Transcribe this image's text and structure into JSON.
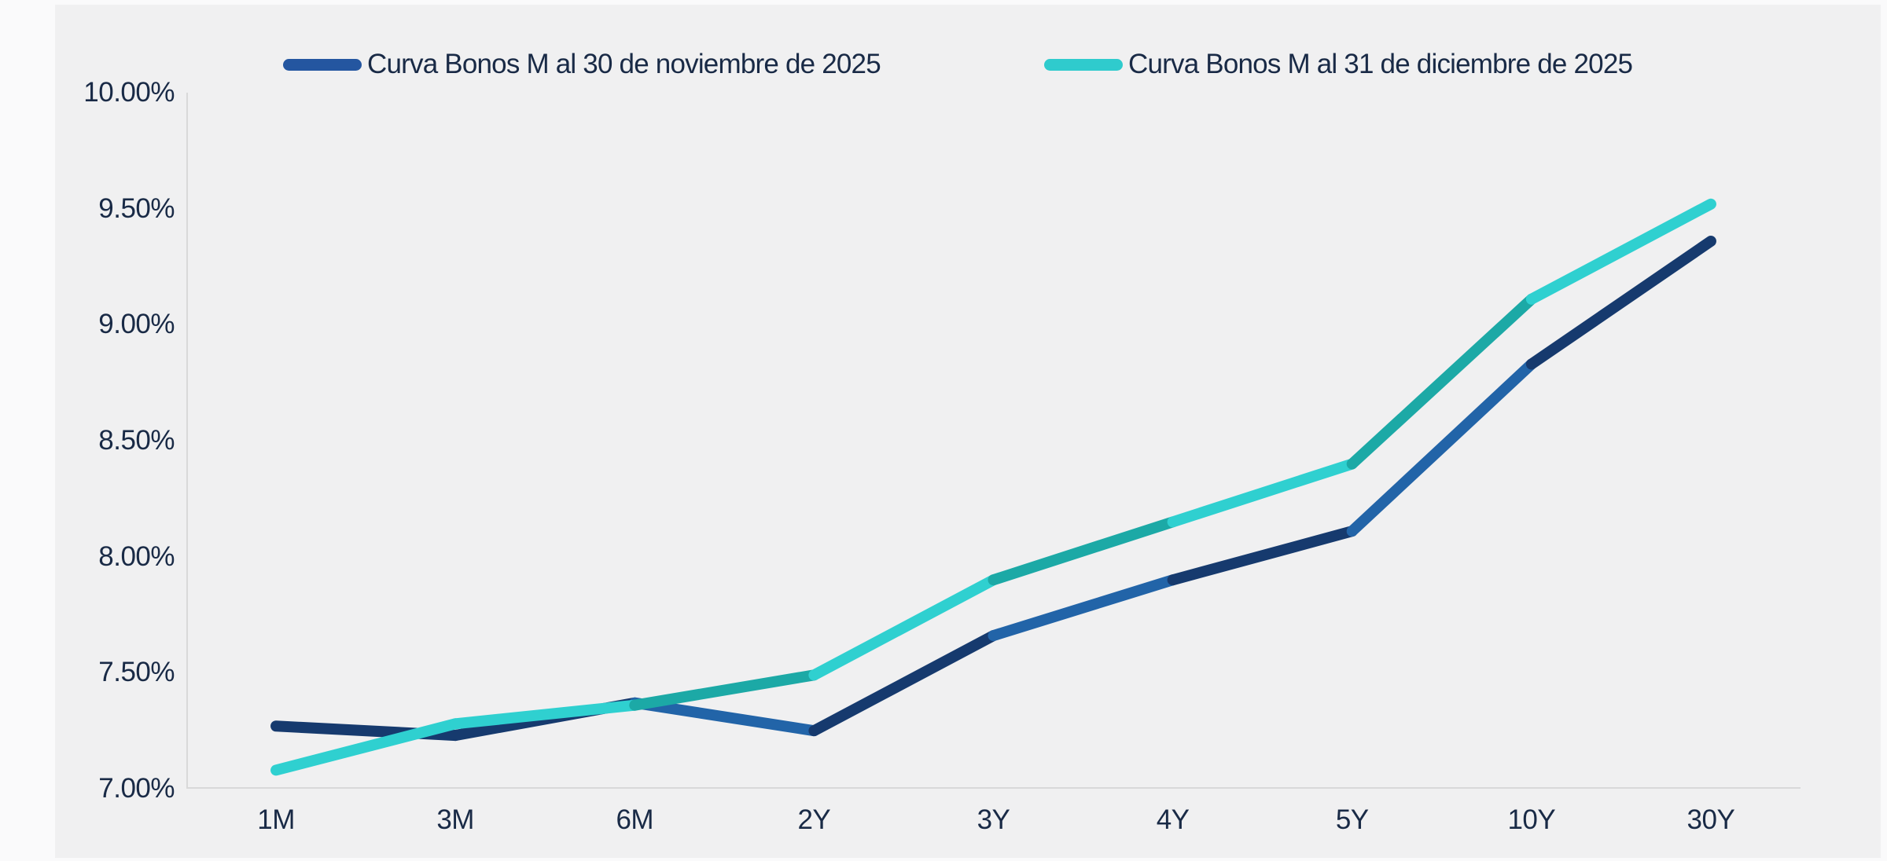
{
  "chart_data": {
    "type": "line",
    "x": [
      "1M",
      "3M",
      "6M",
      "2Y",
      "3Y",
      "4Y",
      "5Y",
      "10Y",
      "30Y"
    ],
    "series": [
      {
        "name": "Curva Bonos M al 30 de noviembre de 2025",
        "values": [
          7.27,
          7.23,
          7.37,
          7.25,
          7.66,
          7.9,
          8.11,
          8.83,
          9.36
        ],
        "color": "#163A6E",
        "color_alt": "#2264A8",
        "swatch": "#2456A0"
      },
      {
        "name": "Curva Bonos M al 31 de diciembre de 2025",
        "values": [
          7.08,
          7.28,
          7.36,
          7.49,
          7.9,
          8.15,
          8.4,
          9.11,
          9.52
        ],
        "color": "#2FD0D0",
        "color_alt": "#1CA9A6",
        "swatch": "#2FCBCD"
      }
    ],
    "alt_segments": [
      2,
      4,
      6
    ],
    "ylim": [
      7.0,
      10.0
    ],
    "ytick_labels": [
      "10.00%",
      "9.50%",
      "9.00%",
      "8.50%",
      "8.00%",
      "7.50%",
      "7.00%"
    ],
    "grid": false,
    "legend_position": "top",
    "axis_color": "#D9D9D9",
    "text_color": "#192A46",
    "panel_bg": "#F0F0F1"
  }
}
